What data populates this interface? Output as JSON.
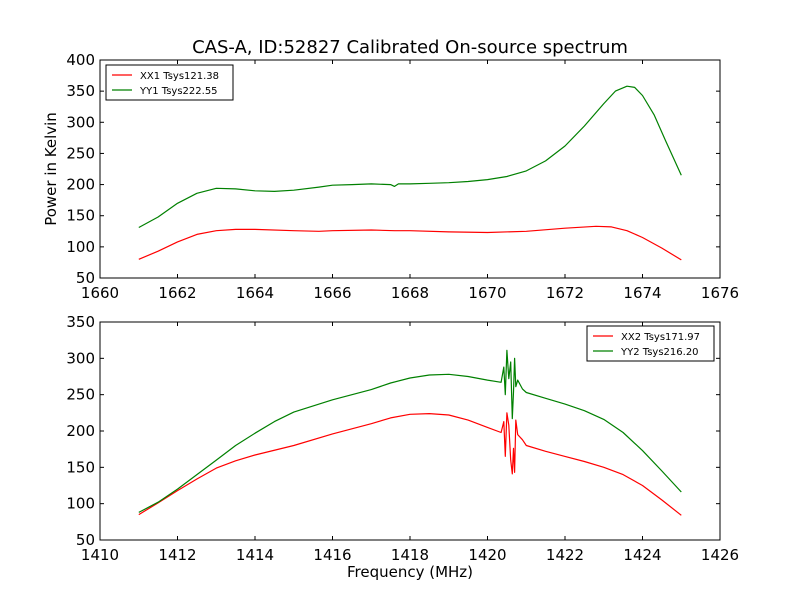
{
  "figure": {
    "title": "CAS-A, ID:52827 Calibrated On-source spectrum"
  },
  "chart_data": [
    {
      "type": "line",
      "title": "CAS-A, ID:52827 Calibrated On-source spectrum",
      "xlabel": "",
      "ylabel": "Power in Kelvin",
      "xlim": [
        1660,
        1676
      ],
      "ylim": [
        50,
        400
      ],
      "xticks": [
        1660,
        1662,
        1664,
        1666,
        1668,
        1670,
        1672,
        1674,
        1676
      ],
      "yticks": [
        50,
        100,
        150,
        200,
        250,
        300,
        350,
        400
      ],
      "grid": false,
      "legend_position": "top-left",
      "series": [
        {
          "name": "XX1 Tsys121.38",
          "color": "#ff0000",
          "x": [
            1661.0,
            1661.5,
            1662.0,
            1662.5,
            1663.0,
            1663.5,
            1664.0,
            1665.0,
            1665.65,
            1666.0,
            1667.0,
            1667.6,
            1668.0,
            1669.0,
            1670.0,
            1671.0,
            1672.0,
            1672.8,
            1673.2,
            1673.6,
            1674.0,
            1674.5,
            1675.0
          ],
          "y": [
            80,
            93,
            108,
            120,
            126,
            128,
            128,
            126,
            125,
            126,
            127,
            126,
            126,
            124,
            123,
            125,
            130,
            133,
            132,
            126,
            115,
            98,
            79
          ]
        },
        {
          "name": "YY1 Tsys222.55",
          "color": "#008000",
          "x": [
            1661.0,
            1661.5,
            1662.0,
            1662.5,
            1663.0,
            1663.5,
            1664.0,
            1664.5,
            1665.0,
            1665.65,
            1666.0,
            1666.5,
            1667.0,
            1667.5,
            1667.6,
            1667.7,
            1668.0,
            1668.5,
            1669.0,
            1669.5,
            1670.0,
            1670.5,
            1671.0,
            1671.5,
            1672.0,
            1672.5,
            1673.0,
            1673.3,
            1673.6,
            1673.8,
            1674.0,
            1674.3,
            1674.6,
            1675.0
          ],
          "y": [
            131,
            148,
            170,
            186,
            194,
            193,
            190,
            189,
            191,
            196,
            199,
            200,
            201,
            200,
            197,
            201,
            201,
            202,
            203,
            205,
            208,
            213,
            222,
            238,
            262,
            294,
            330,
            350,
            358,
            356,
            343,
            312,
            270,
            215
          ]
        }
      ]
    },
    {
      "type": "line",
      "title": "",
      "xlabel": "Frequency (MHz)",
      "ylabel": "",
      "xlim": [
        1410,
        1426
      ],
      "ylim": [
        50,
        350
      ],
      "xticks": [
        1410,
        1412,
        1414,
        1416,
        1418,
        1420,
        1422,
        1424,
        1426
      ],
      "yticks": [
        50,
        100,
        150,
        200,
        250,
        300,
        350
      ],
      "grid": false,
      "legend_position": "top-right",
      "series": [
        {
          "name": "XX2 Tsys171.97",
          "color": "#ff0000",
          "x": [
            1411.0,
            1411.5,
            1412.0,
            1412.5,
            1413.0,
            1413.5,
            1414.0,
            1415.0,
            1416.0,
            1417.0,
            1417.5,
            1418.0,
            1418.5,
            1419.0,
            1419.5,
            1420.0,
            1420.35,
            1420.42,
            1420.46,
            1420.5,
            1420.55,
            1420.6,
            1420.64,
            1420.67,
            1420.7,
            1420.73,
            1420.78,
            1420.9,
            1421.0,
            1421.5,
            1422.0,
            1422.5,
            1423.0,
            1423.5,
            1424.0,
            1424.5,
            1425.0
          ],
          "y": [
            85,
            101,
            118,
            134,
            149,
            159,
            167,
            180,
            196,
            210,
            218,
            223,
            224,
            222,
            215,
            205,
            198,
            213,
            165,
            225,
            208,
            160,
            141,
            176,
            143,
            215,
            195,
            188,
            180,
            172,
            165,
            158,
            150,
            140,
            125,
            105,
            84
          ]
        },
        {
          "name": "YY2 Tsys216.20",
          "color": "#008000",
          "x": [
            1411.0,
            1411.5,
            1412.0,
            1412.5,
            1413.0,
            1413.5,
            1414.0,
            1414.5,
            1415.0,
            1416.0,
            1417.0,
            1417.5,
            1418.0,
            1418.5,
            1419.0,
            1419.5,
            1420.0,
            1420.35,
            1420.42,
            1420.46,
            1420.5,
            1420.55,
            1420.6,
            1420.64,
            1420.67,
            1420.7,
            1420.73,
            1420.78,
            1420.9,
            1421.0,
            1421.5,
            1422.0,
            1422.5,
            1423.0,
            1423.5,
            1424.0,
            1424.5,
            1425.0
          ],
          "y": [
            88,
            102,
            120,
            140,
            160,
            180,
            197,
            213,
            226,
            243,
            257,
            266,
            273,
            277,
            278,
            275,
            270,
            267,
            288,
            250,
            311,
            272,
            295,
            217,
            254,
            300,
            261,
            270,
            258,
            253,
            245,
            237,
            228,
            216,
            198,
            173,
            145,
            116
          ]
        }
      ]
    }
  ]
}
